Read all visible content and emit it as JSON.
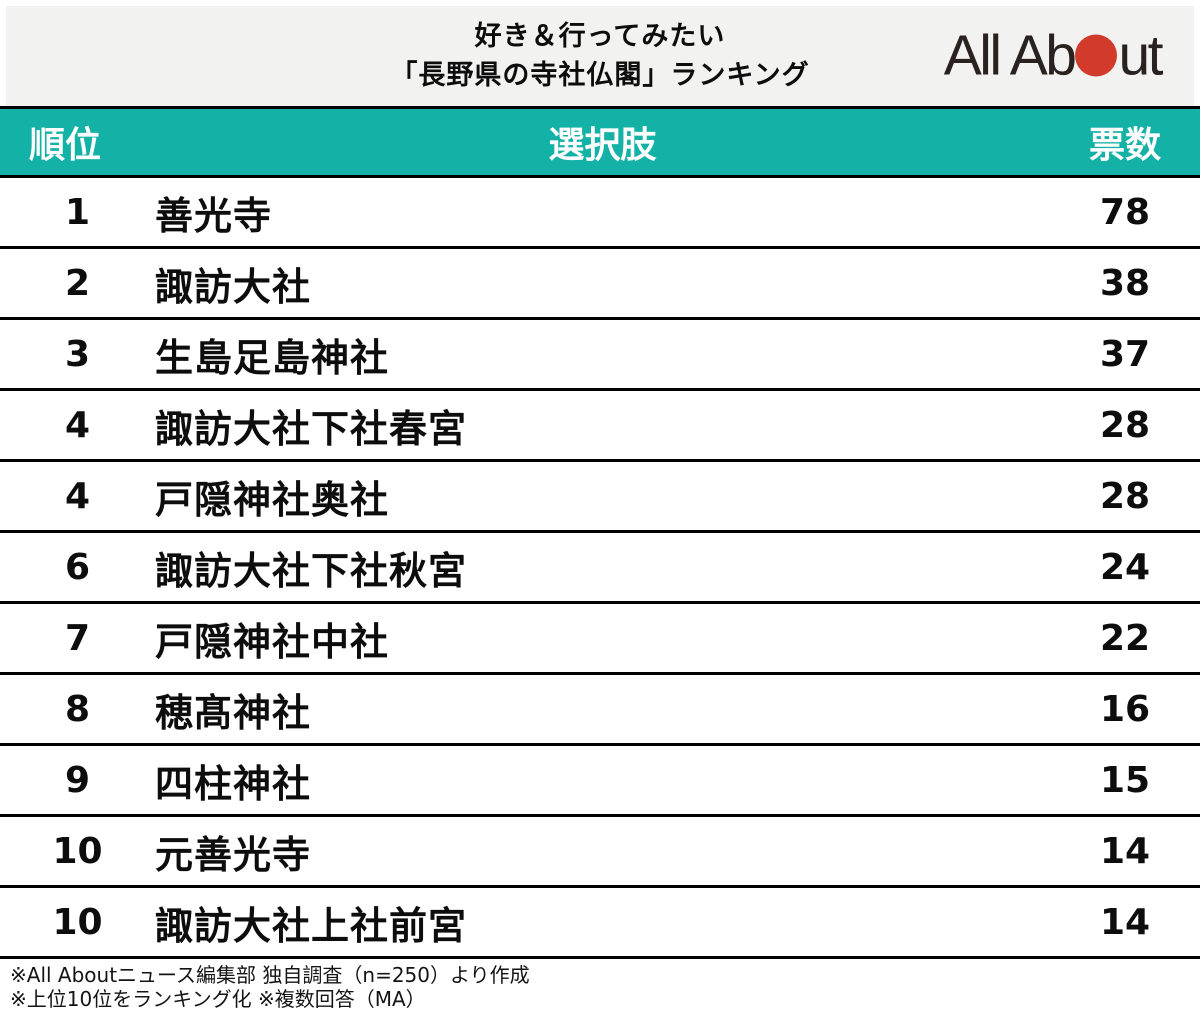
{
  "header": {
    "title_line1": "好き＆行ってみたい",
    "title_line2": "「長野県の寺社仏閣」ランキング",
    "logo_alt": "All About",
    "logo_text_left": "All Ab",
    "logo_text_right": "ut"
  },
  "chart_data": {
    "type": "table",
    "title": "好き＆行ってみたい「長野県の寺社仏閣」ランキング",
    "columns": {
      "rank": "順位",
      "choice": "選択肢",
      "votes": "票数"
    },
    "rows": [
      {
        "rank": "1",
        "choice": "善光寺",
        "votes": "78"
      },
      {
        "rank": "2",
        "choice": "諏訪大社",
        "votes": "38"
      },
      {
        "rank": "3",
        "choice": "生島足島神社",
        "votes": "37"
      },
      {
        "rank": "4",
        "choice": "諏訪大社下社春宮",
        "votes": "28"
      },
      {
        "rank": "4",
        "choice": "戸隠神社奥社",
        "votes": "28"
      },
      {
        "rank": "6",
        "choice": "諏訪大社下社秋宮",
        "votes": "24"
      },
      {
        "rank": "7",
        "choice": "戸隠神社中社",
        "votes": "22"
      },
      {
        "rank": "8",
        "choice": "穂髙神社",
        "votes": "16"
      },
      {
        "rank": "9",
        "choice": "四柱神社",
        "votes": "15"
      },
      {
        "rank": "10",
        "choice": "元善光寺",
        "votes": "14"
      },
      {
        "rank": "10",
        "choice": "諏訪大社上社前宮",
        "votes": "14"
      }
    ]
  },
  "footer": {
    "note1": "※All Aboutニュース編集部 独自調査（n=250）より作成",
    "note2": "※上位10位をランキング化 ※複数回答（MA）"
  },
  "colors": {
    "accent_teal": "#14b1a6",
    "logo_red": "#d23b2c",
    "header_bg": "#f2f2f1",
    "text_black": "#0d0d0d"
  }
}
